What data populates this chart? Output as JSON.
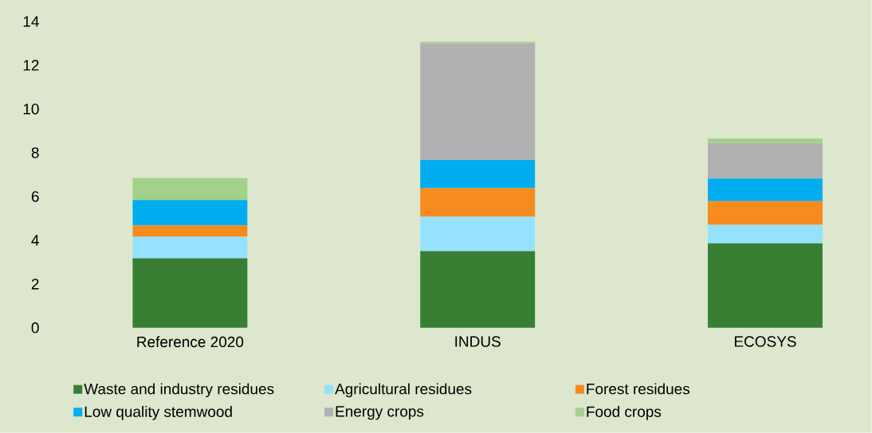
{
  "chart_data": {
    "type": "bar",
    "stacked": true,
    "categories": [
      "Reference 2020",
      "INDUS",
      "ECOSYS"
    ],
    "series": [
      {
        "name": "Waste and industry residues",
        "color": "#387f34",
        "values": [
          3.18,
          3.5,
          3.86
        ]
      },
      {
        "name": "Agricultural residues",
        "color": "#94e2ff",
        "values": [
          0.98,
          1.58,
          0.84
        ]
      },
      {
        "name": "Forest residues",
        "color": "#f68b20",
        "values": [
          0.52,
          1.3,
          1.09
        ]
      },
      {
        "name": "Low quality stemwood",
        "color": "#00aeef",
        "values": [
          1.16,
          1.29,
          1.03
        ]
      },
      {
        "name": "Energy crops",
        "color": "#b1b1b3",
        "values": [
          0,
          5.33,
          1.63
        ]
      },
      {
        "name": "Food crops",
        "color": "#a3d18a",
        "values": [
          1.0,
          0.07,
          0.2
        ]
      }
    ],
    "ylim": [
      0,
      14
    ],
    "yticks": [
      0,
      2,
      4,
      6,
      8,
      10,
      12,
      14
    ],
    "grid": false,
    "legend": "bottom"
  }
}
